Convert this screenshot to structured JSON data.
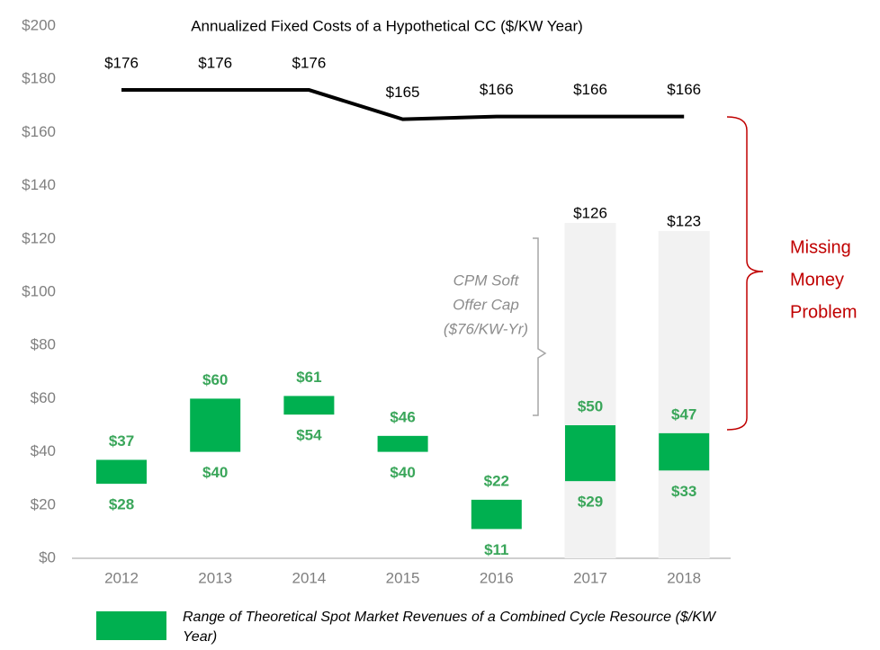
{
  "chart_data": {
    "type": "range_combo",
    "title": "Annualized Fixed Costs of a Hypothetical CC ($/KW Year)",
    "categories": [
      "2012",
      "2013",
      "2014",
      "2015",
      "2016",
      "2017",
      "2018"
    ],
    "ylim": [
      0,
      200
    ],
    "yticks": [
      {
        "value": 0,
        "label": "$0"
      },
      {
        "value": 20,
        "label": "$20"
      },
      {
        "value": 40,
        "label": "$40"
      },
      {
        "value": 60,
        "label": "$60"
      },
      {
        "value": 80,
        "label": "$80"
      },
      {
        "value": 100,
        "label": "$100"
      },
      {
        "value": 120,
        "label": "$120"
      },
      {
        "value": 140,
        "label": "$140"
      },
      {
        "value": 160,
        "label": "$160"
      },
      {
        "value": 180,
        "label": "$180"
      },
      {
        "value": 200,
        "label": "$200"
      }
    ],
    "grid": false,
    "fixed_costs": {
      "color": "#000000",
      "values": [
        176,
        176,
        176,
        165,
        166,
        166,
        166
      ],
      "value_labels": [
        "$176",
        "$176",
        "$176",
        "$165",
        "$166",
        "$166",
        "$166"
      ]
    },
    "range": {
      "name": "Range of Theoretical Spot Market Revenues of a Combined Cycle Resource ($/KW Year)",
      "color": "#00b050",
      "label_color": "#3aa65a",
      "low": [
        28,
        40,
        54,
        40,
        11,
        29,
        33
      ],
      "low_labels": [
        "$28",
        "$40",
        "$54",
        "$40",
        "$11",
        "$29",
        "$33"
      ],
      "high": [
        37,
        60,
        61,
        46,
        22,
        50,
        47
      ],
      "high_labels": [
        "$37",
        "$60",
        "$61",
        "$46",
        "$22",
        "$50",
        "$47"
      ]
    },
    "cap": {
      "color": "#f2f2f2",
      "values": [
        null,
        null,
        null,
        null,
        null,
        126,
        123
      ],
      "value_labels": [
        null,
        null,
        null,
        null,
        null,
        "$126",
        "$123"
      ],
      "annotation": [
        "CPM Soft",
        "Offer Cap",
        "($76/KW-Yr)"
      ]
    },
    "gap_annotation": {
      "lines": [
        "Missing",
        "Money",
        "Problem"
      ],
      "color": "#c00000"
    }
  }
}
